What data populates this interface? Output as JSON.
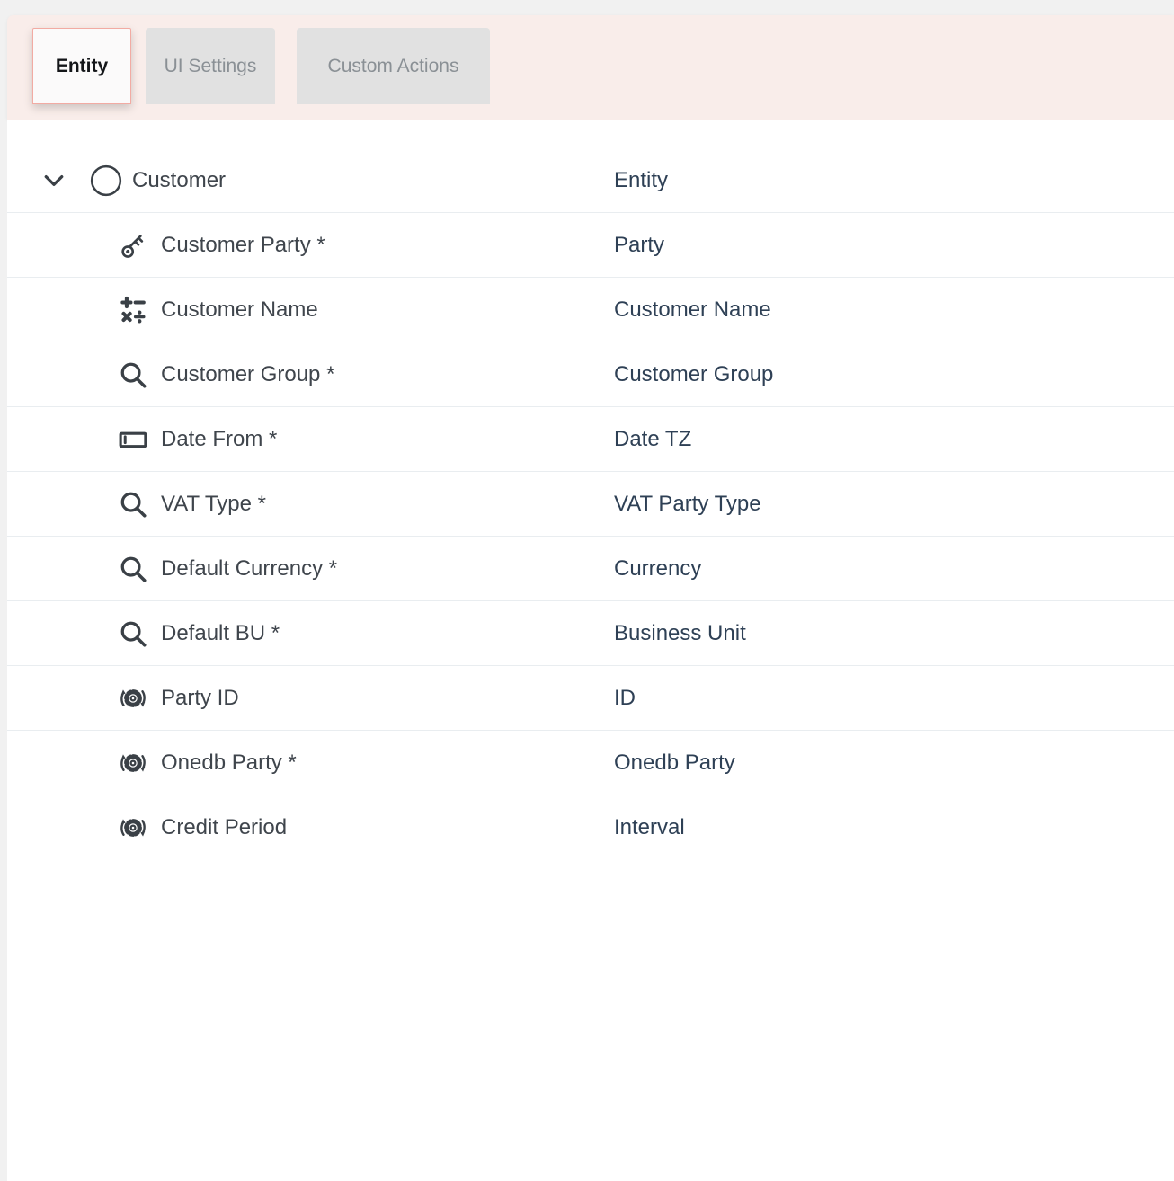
{
  "tabs": [
    {
      "label": "Entity",
      "active": true
    },
    {
      "label": "UI Settings",
      "active": false
    },
    {
      "label": "Custom Actions",
      "active": false
    }
  ],
  "table": {
    "columns": [
      "field",
      "type"
    ],
    "rows": [
      {
        "icon": "entity-circle-icon",
        "label": "Customer",
        "type": "Entity",
        "level": 0,
        "expanded": true
      },
      {
        "icon": "key-icon",
        "label": "Customer Party *",
        "type": "Party",
        "level": 1
      },
      {
        "icon": "math-icon",
        "label": "Customer Name",
        "type": "Customer Name",
        "level": 1
      },
      {
        "icon": "search-icon",
        "label": "Customer Group *",
        "type": "Customer Group",
        "level": 1
      },
      {
        "icon": "textbox-icon",
        "label": "Date From *",
        "type": "Date TZ",
        "level": 1
      },
      {
        "icon": "search-icon",
        "label": "VAT Type *",
        "type": "VAT Party Type",
        "level": 1
      },
      {
        "icon": "search-icon",
        "label": "Default Currency *",
        "type": "Currency",
        "level": 1
      },
      {
        "icon": "search-icon",
        "label": "Default BU *",
        "type": "Business Unit",
        "level": 1
      },
      {
        "icon": "process-gear-icon",
        "label": "Party ID",
        "type": "ID",
        "level": 1
      },
      {
        "icon": "process-gear-icon",
        "label": "Onedb Party *",
        "type": "Onedb Party",
        "level": 1
      },
      {
        "icon": "process-gear-icon",
        "label": "Credit Period",
        "type": "Interval",
        "level": 1
      }
    ]
  },
  "colors": {
    "tab_bar_background": "#f9edea",
    "active_tab_border": "#f2aba3",
    "active_tab_background": "#fbfafa",
    "inactive_tab_background": "#e1e1e1",
    "inactive_tab_text": "#8a9095",
    "page_background": "#f1f1f1",
    "row_label_text": "#3f454c",
    "row_type_text": "#2e4055",
    "row_divider": "#e9edf0",
    "icon_color": "#3a4046"
  }
}
